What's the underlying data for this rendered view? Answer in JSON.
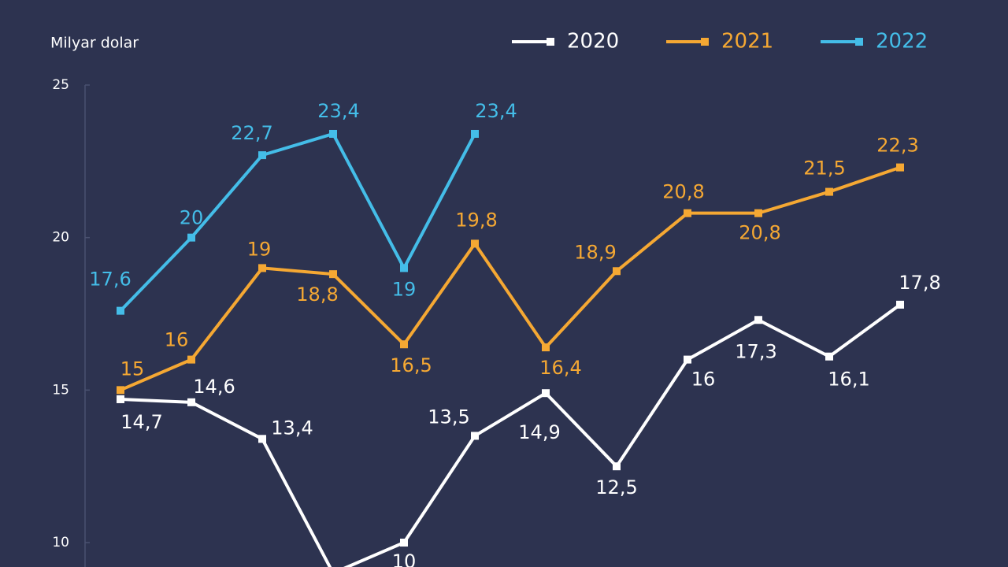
{
  "chart_data": {
    "type": "line",
    "y_axis_label": "Milyar dolar",
    "categories": [
      null,
      null,
      null,
      null,
      null,
      null,
      null,
      null,
      null,
      null,
      null,
      null
    ],
    "ylim": [
      9.2,
      25
    ],
    "yticks": [
      10,
      15,
      20,
      25
    ],
    "series": [
      {
        "name": "2020",
        "color": "#ffffff",
        "values": [
          14.7,
          14.6,
          13.4,
          9,
          10,
          13.5,
          14.9,
          12.5,
          16,
          17.3,
          16.1,
          17.8
        ],
        "value_labels": [
          "14,7",
          "14,6",
          "13,4",
          null,
          "10",
          "13,5",
          "14,9",
          "12,5",
          "16",
          "17,3",
          "16,1",
          "17,8"
        ]
      },
      {
        "name": "2021",
        "color": "#f5a833",
        "values": [
          15,
          16,
          19,
          18.8,
          16.5,
          19.8,
          16.4,
          18.9,
          20.8,
          20.8,
          21.5,
          22.3
        ],
        "value_labels": [
          "15",
          "16",
          "19",
          "18,8",
          "16,5",
          "19,8",
          "16,4",
          "18,9",
          "20,8",
          "20,8",
          "21,5",
          "22,3"
        ]
      },
      {
        "name": "2022",
        "color": "#44bde8",
        "values": [
          17.6,
          20,
          22.7,
          23.4,
          19,
          23.4,
          null,
          null,
          null,
          null,
          null,
          null
        ],
        "value_labels": [
          "17,6",
          "20",
          "22,7",
          "23,4",
          "19",
          "23,4",
          null,
          null,
          null,
          null,
          null,
          null
        ]
      }
    ]
  }
}
